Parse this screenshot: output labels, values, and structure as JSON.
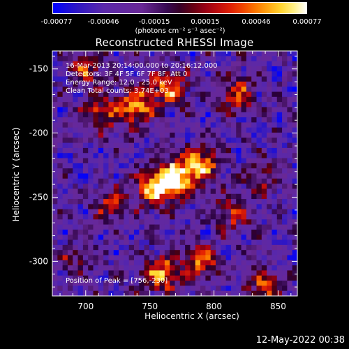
{
  "chart_data": {
    "type": "heatmap",
    "title": "Reconstructed RHESSI Image",
    "xlabel": "Heliocentric X (arcsec)",
    "ylabel": "Heliocentric Y (arcsec)",
    "xlim": [
      674,
      865
    ],
    "ylim": [
      -327,
      -136
    ],
    "xticks": [
      700,
      750,
      800,
      850
    ],
    "yticks": [
      -150,
      -200,
      -250,
      -300
    ],
    "colorbar": {
      "ticks": [
        "-0.00077",
        "-0.00046",
        "-0.00015",
        "0.00015",
        "0.00046",
        "0.00077"
      ],
      "range": [
        -0.00077,
        0.00077
      ],
      "unit": "(photons cm⁻² s⁻¹ asec⁻²)"
    },
    "annotations": {
      "time": "16-Mar-2013 20:14:00.000 to 20:16:12.000",
      "detectors": "Detectors: 3F 4F 5F 6F 7F 8F, Att 0",
      "energy": "Energy Range: 12.0 - 25.0 keV",
      "clean": "Clean     Total counts: 3.74E+03",
      "peak": "Position of Peak = [756,-230]"
    },
    "sources": [
      {
        "x": 770,
        "y": -235,
        "amplitude": 1.0
      },
      {
        "x": 755,
        "y": -243,
        "amplitude": 0.9
      },
      {
        "x": 790,
        "y": -225,
        "amplitude": 0.8
      },
      {
        "x": 740,
        "y": -180,
        "amplitude": 0.8
      },
      {
        "x": 765,
        "y": -165,
        "amplitude": 0.75
      },
      {
        "x": 712,
        "y": -185,
        "amplitude": 0.65
      },
      {
        "x": 818,
        "y": -170,
        "amplitude": 0.6
      },
      {
        "x": 700,
        "y": -150,
        "amplitude": 0.55
      },
      {
        "x": 760,
        "y": -310,
        "amplitude": 0.8
      },
      {
        "x": 790,
        "y": -300,
        "amplitude": 0.65
      },
      {
        "x": 840,
        "y": -320,
        "amplitude": 0.6
      },
      {
        "x": 720,
        "y": -255,
        "amplitude": 0.5
      },
      {
        "x": 815,
        "y": -262,
        "amplitude": 0.55
      },
      {
        "x": 840,
        "y": -235,
        "amplitude": 0.35
      },
      {
        "x": 690,
        "y": -300,
        "amplitude": 0.3
      }
    ]
  },
  "timestamp": "12-May-2022 00:38"
}
